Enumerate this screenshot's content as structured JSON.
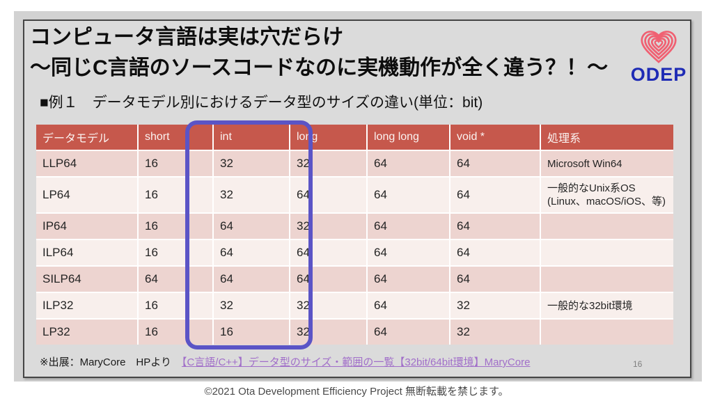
{
  "slide": {
    "title_line1": "コンピュータ言語は実は穴だらけ",
    "title_line2": "～同じC言語のソースコードなのに実機動作が全く違う？！～",
    "example_heading": "■例１　データモデル別におけるデータ型のサイズの違い(単位：bit)",
    "page_number": "16"
  },
  "logo": {
    "icon": "fingerprint-heart-icon",
    "text": "ODEP"
  },
  "table": {
    "headers": [
      "データモデル",
      "short",
      "int",
      "long",
      "long long",
      "void *",
      "処理系"
    ],
    "rows": [
      {
        "cells": [
          "LLP64",
          "16",
          "32",
          "32",
          "64",
          "64",
          "Microsoft Win64"
        ]
      },
      {
        "cells": [
          "LP64",
          "16",
          "32",
          "64",
          "64",
          "64",
          "一般的なUnix系OS (Linux、macOS/iOS、等)"
        ]
      },
      {
        "cells": [
          "IP64",
          "16",
          "64",
          "32",
          "64",
          "64",
          ""
        ]
      },
      {
        "cells": [
          "ILP64",
          "16",
          "64",
          "64",
          "64",
          "64",
          ""
        ]
      },
      {
        "cells": [
          "SILP64",
          "64",
          "64",
          "64",
          "64",
          "64",
          ""
        ]
      },
      {
        "cells": [
          "ILP32",
          "16",
          "32",
          "32",
          "64",
          "32",
          "一般的な32bit環境"
        ]
      },
      {
        "cells": [
          "LP32",
          "16",
          "16",
          "32",
          "64",
          "32",
          ""
        ]
      }
    ],
    "highlighted_columns": [
      "int",
      "long"
    ]
  },
  "source": {
    "prefix": "※出展：MaryCore　HPより　",
    "link_text": "【C言語/C++】データ型のサイズ・範囲の一覧【32bit/64bit環境】MaryCore"
  },
  "footer": {
    "copyright": "©2021  Ota Development Efficiency Project 無断転載を禁じます。"
  },
  "colors": {
    "header_bg": "#C6584C",
    "row_dark": "#EDD4D0",
    "row_light": "#F8EFEC",
    "highlight_border": "#5B54C6",
    "link": "#A16FC9",
    "logo_heart": "#F06072",
    "logo_text": "#1E2BB5",
    "slide_bg": "#DBDBDB",
    "canvas_bg": "#D2D2D2"
  }
}
